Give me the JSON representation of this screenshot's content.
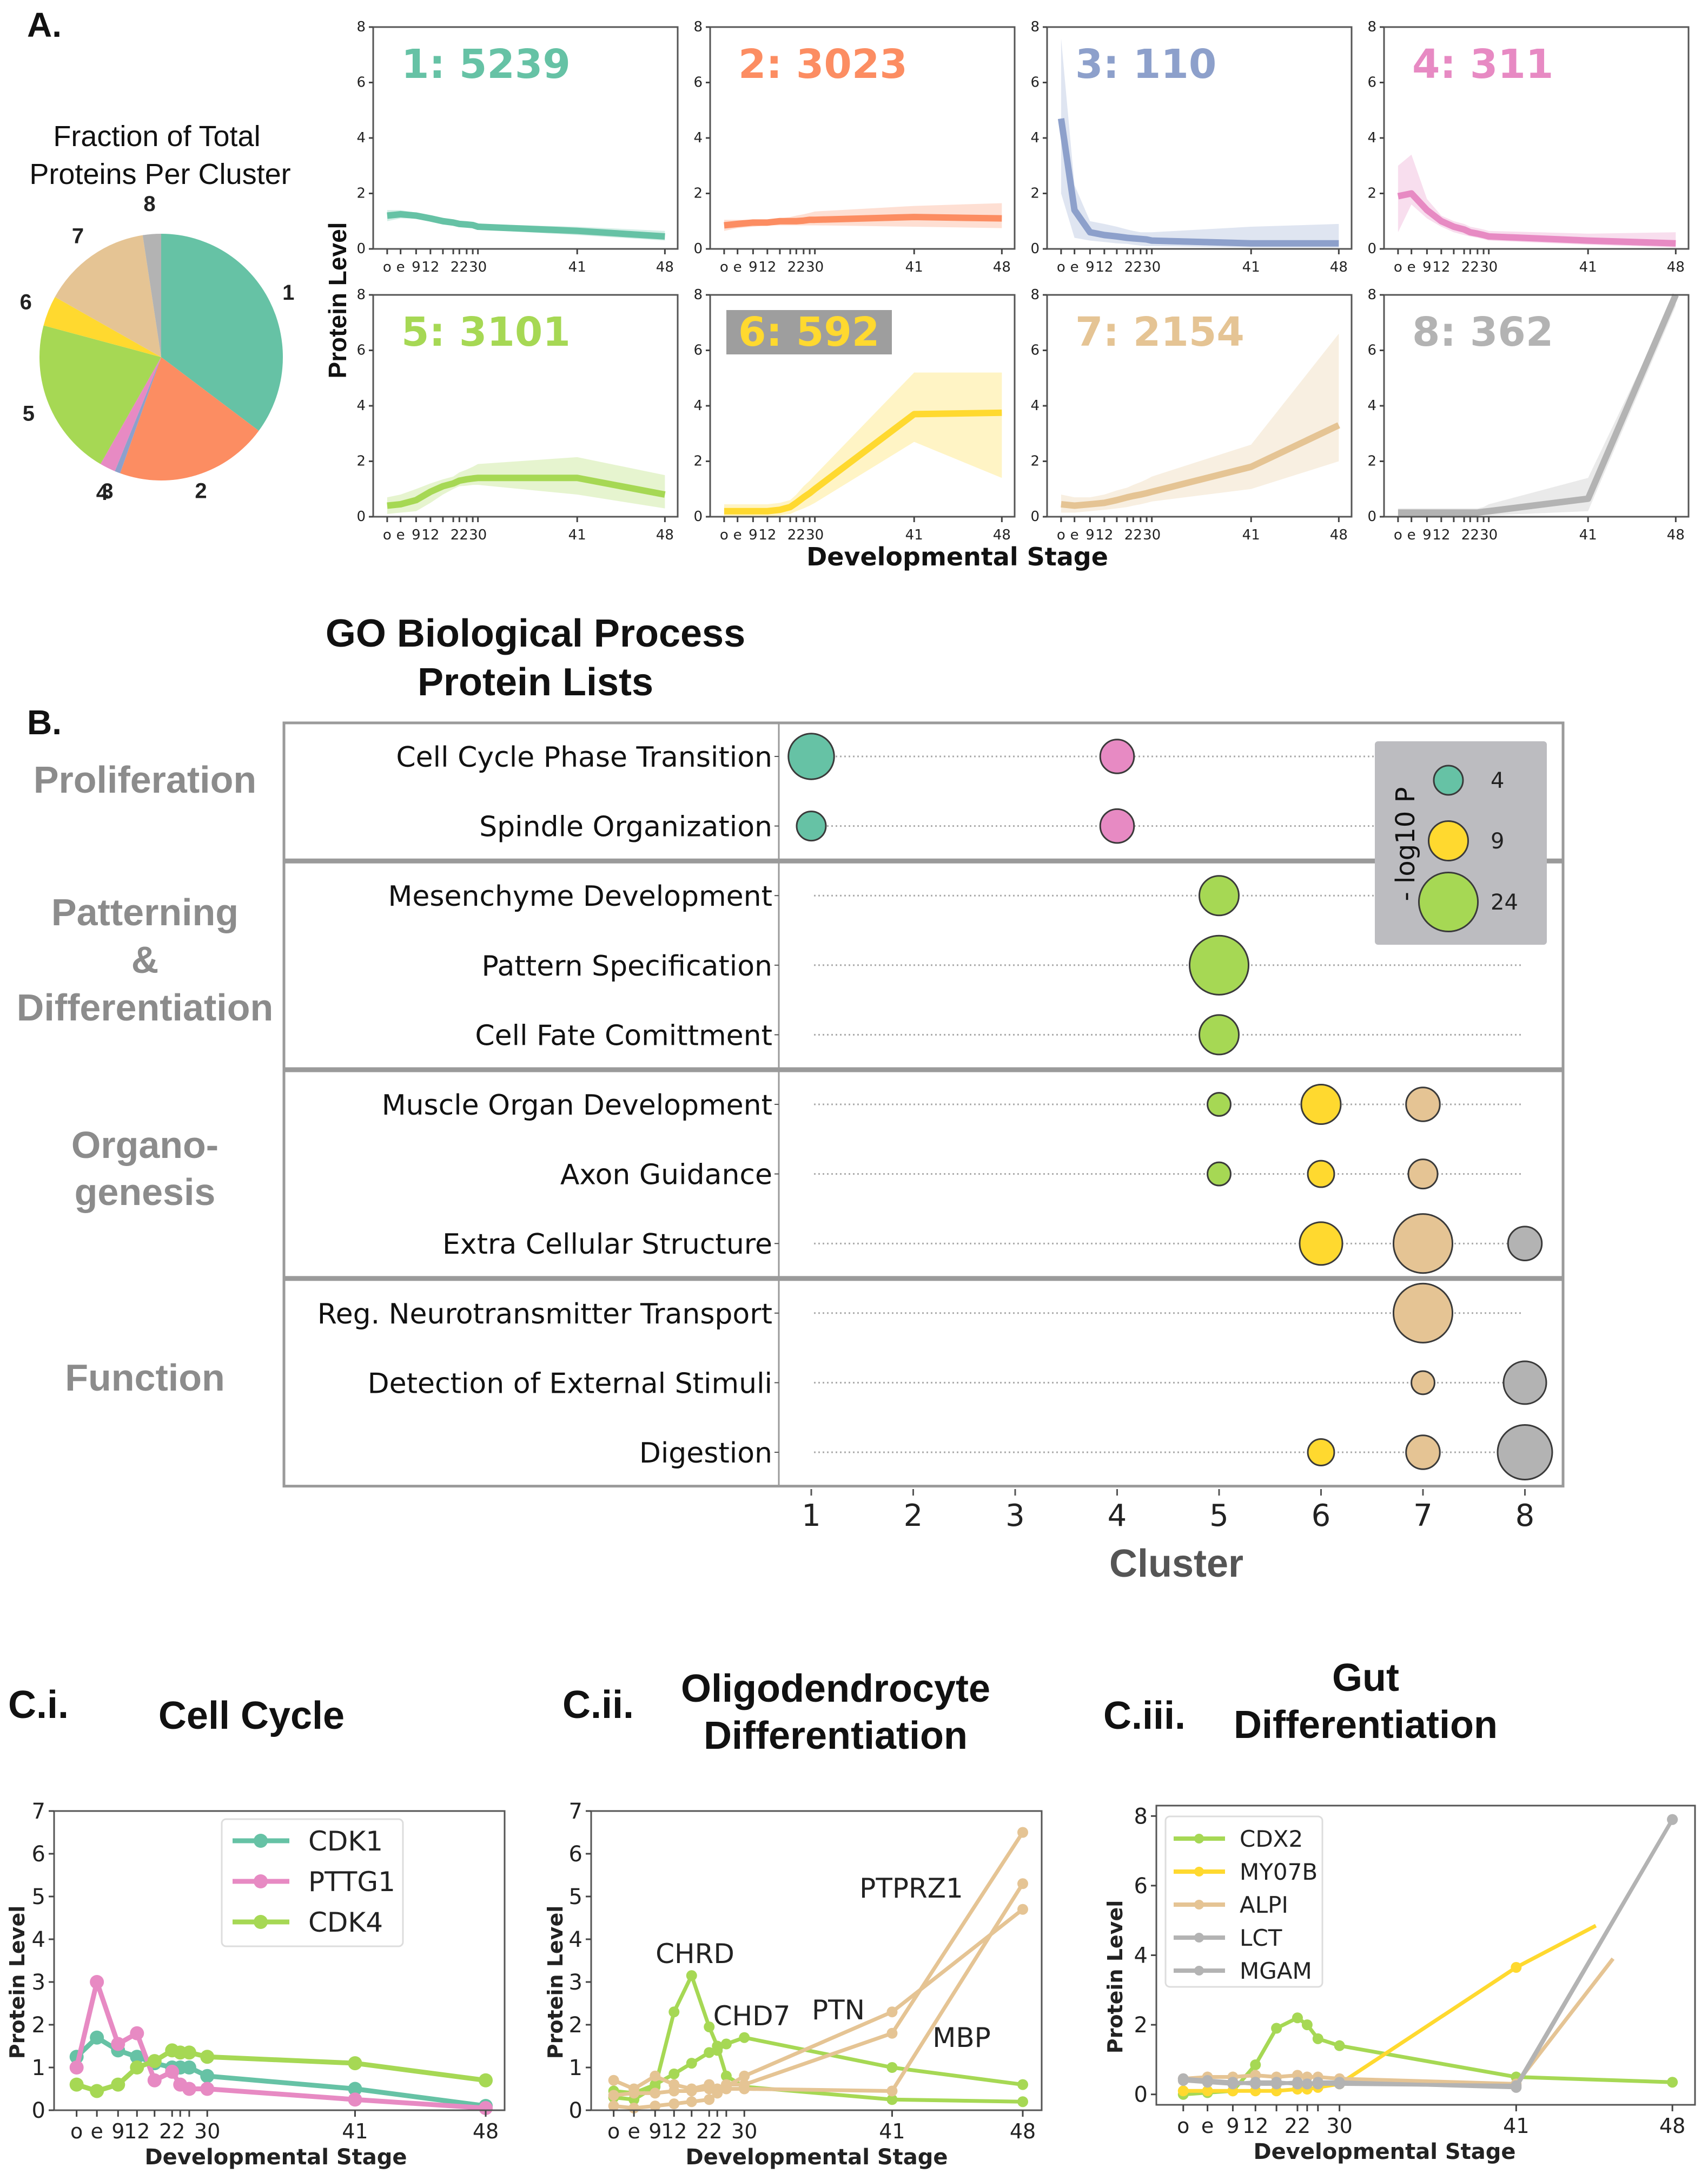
{
  "panel_labels": {
    "a": "A.",
    "b": "B.",
    "ci": "C.i.",
    "cii": "C.ii.",
    "ciii": "C.iii."
  },
  "colors": {
    "c1": "#66c2a5",
    "c2": "#fc8d62",
    "c3": "#8da0cb",
    "c4": "#e78ac3",
    "c5": "#a6d854",
    "c6": "#ffd92f",
    "c7": "#e5c494",
    "c8": "#b3b3b3",
    "label_highlight_bg": "#9e9e9e",
    "legend_bg": "#bcbcc0",
    "category_gray": "#8c8c8c"
  },
  "stage_axis": {
    "labels": [
      "o",
      "e",
      "9",
      "12",
      "",
      "",
      "22",
      "",
      "",
      "30",
      "41",
      "48"
    ],
    "shown_labels_text": "o e 912 22 30"
  },
  "chart_data": [
    {
      "id": "pie",
      "type": "pie",
      "title": "Fraction of Total Proteins Per Cluster",
      "categories": [
        "1",
        "2",
        "3",
        "4",
        "5",
        "6",
        "7",
        "8"
      ],
      "values": [
        5239,
        3023,
        110,
        311,
        3101,
        592,
        2154,
        362
      ],
      "start": "top, counter-clockwise order 8,7,6,5,4,3,2,1 going left; cluster 1 clockwise from top"
    },
    {
      "id": "cluster-profiles",
      "type": "line",
      "xlabel": "Developmental Stage",
      "ylabel": "Protein Level",
      "ylim": [
        0,
        8
      ],
      "yticks": [
        0,
        2,
        4,
        6,
        8
      ],
      "x_stages": [
        "o",
        "e",
        "9",
        "12",
        "15",
        "18",
        "22",
        "24",
        "26",
        "30",
        "41",
        "48"
      ],
      "x_ticklabels": [
        "o",
        "e",
        "9",
        "12",
        "",
        "",
        "22",
        "",
        "",
        "30",
        "41",
        "48"
      ],
      "panels": [
        {
          "cluster": 1,
          "label": "1: 5239",
          "mean": [
            1.2,
            1.25,
            1.2,
            1.1,
            1.0,
            0.95,
            0.9,
            0.88,
            0.86,
            0.8,
            0.65,
            0.45
          ],
          "lower": [
            1.0,
            1.1,
            1.1,
            1.0,
            0.9,
            0.85,
            0.8,
            0.78,
            0.75,
            0.7,
            0.5,
            0.3
          ],
          "upper": [
            1.4,
            1.4,
            1.3,
            1.2,
            1.1,
            1.05,
            1.0,
            0.98,
            0.96,
            0.9,
            0.8,
            0.65
          ]
        },
        {
          "cluster": 2,
          "label": "2: 3023",
          "mean": [
            0.85,
            0.9,
            0.95,
            0.95,
            1.0,
            1.0,
            1.0,
            1.02,
            1.05,
            1.05,
            1.15,
            1.1
          ],
          "lower": [
            0.65,
            0.75,
            0.8,
            0.85,
            0.85,
            0.85,
            0.85,
            0.85,
            0.85,
            0.85,
            0.8,
            0.75
          ],
          "upper": [
            1.05,
            1.05,
            1.05,
            1.05,
            1.1,
            1.15,
            1.2,
            1.25,
            1.3,
            1.35,
            1.55,
            1.65
          ]
        },
        {
          "cluster": 3,
          "label": "3: 110",
          "mean": [
            4.7,
            1.4,
            0.6,
            0.5,
            0.45,
            0.4,
            0.38,
            0.36,
            0.34,
            0.3,
            0.2,
            0.2
          ],
          "lower": [
            2.0,
            0.4,
            0.3,
            0.25,
            0.2,
            0.18,
            0.15,
            0.12,
            0.1,
            0.1,
            0.05,
            0.05
          ],
          "upper": [
            7.6,
            2.3,
            1.0,
            0.9,
            0.8,
            0.7,
            0.65,
            0.6,
            0.6,
            0.6,
            0.8,
            0.9
          ]
        },
        {
          "cluster": 4,
          "label": "4: 311",
          "mean": [
            1.9,
            2.0,
            1.4,
            1.0,
            0.8,
            0.7,
            0.6,
            0.55,
            0.5,
            0.45,
            0.3,
            0.2
          ],
          "lower": [
            0.6,
            1.6,
            1.1,
            0.8,
            0.6,
            0.5,
            0.45,
            0.4,
            0.35,
            0.3,
            0.15,
            0.05
          ],
          "upper": [
            3.0,
            3.4,
            1.8,
            1.2,
            1.0,
            0.9,
            0.8,
            0.75,
            0.7,
            0.65,
            0.55,
            0.6
          ]
        },
        {
          "cluster": 5,
          "label": "5: 3101",
          "mean": [
            0.4,
            0.45,
            0.6,
            0.9,
            1.1,
            1.2,
            1.3,
            1.35,
            1.38,
            1.4,
            1.4,
            0.8
          ],
          "lower": [
            0.1,
            0.15,
            0.2,
            0.5,
            0.8,
            1.0,
            1.1,
            1.12,
            1.15,
            1.15,
            0.8,
            0.3
          ],
          "upper": [
            0.7,
            0.8,
            1.0,
            1.2,
            1.35,
            1.45,
            1.6,
            1.7,
            1.8,
            1.9,
            2.15,
            1.5
          ]
        },
        {
          "cluster": 6,
          "label": "6: 592",
          "mean": [
            0.2,
            0.2,
            0.2,
            0.2,
            0.25,
            0.35,
            0.5,
            0.7,
            0.85,
            1.0,
            3.7,
            3.75
          ],
          "lower": [
            0.0,
            0.0,
            0.0,
            0.0,
            0.05,
            0.1,
            0.2,
            0.3,
            0.4,
            0.5,
            2.7,
            1.4
          ],
          "upper": [
            0.45,
            0.45,
            0.45,
            0.45,
            0.5,
            0.6,
            0.8,
            1.1,
            1.3,
            1.5,
            5.2,
            5.2
          ]
        },
        {
          "cluster": 7,
          "label": "7: 2154",
          "mean": [
            0.45,
            0.4,
            0.45,
            0.5,
            0.6,
            0.7,
            0.75,
            0.8,
            0.85,
            0.9,
            1.8,
            3.3
          ],
          "lower": [
            0.15,
            0.15,
            0.2,
            0.25,
            0.3,
            0.35,
            0.4,
            0.45,
            0.5,
            0.55,
            1.0,
            2.0
          ],
          "upper": [
            0.8,
            0.7,
            0.7,
            0.8,
            0.95,
            1.05,
            1.15,
            1.25,
            1.35,
            1.45,
            2.6,
            6.6
          ]
        },
        {
          "cluster": 8,
          "label": "8: 362",
          "mean": [
            0.15,
            0.15,
            0.15,
            0.15,
            0.15,
            0.15,
            0.15,
            0.15,
            0.18,
            0.2,
            0.65,
            8.0
          ],
          "lower": [
            0.0,
            0.0,
            0.0,
            0.0,
            0.0,
            0.0,
            0.0,
            0.0,
            0.05,
            0.05,
            0.2,
            7.6
          ],
          "upper": [
            0.3,
            0.3,
            0.3,
            0.3,
            0.3,
            0.3,
            0.3,
            0.3,
            0.35,
            0.45,
            1.4,
            8.2
          ]
        }
      ]
    },
    {
      "id": "go-enrichment",
      "type": "scatter",
      "title": "GO Biological Process Protein Lists",
      "xlabel": "Cluster",
      "xticks": [
        1,
        2,
        3,
        4,
        5,
        6,
        7,
        8
      ],
      "size_legend": {
        "title": "- log10 P",
        "entries": [
          {
            "value": 4,
            "cluster": 1
          },
          {
            "value": 9,
            "cluster": 6
          },
          {
            "value": 24,
            "cluster": 5
          }
        ]
      },
      "groups": [
        {
          "name": "Proliferation",
          "terms": [
            {
              "term": "Cell Cycle Phase Transition",
              "points": [
                {
                  "cluster": 1,
                  "logp": 13
                },
                {
                  "cluster": 4,
                  "logp": 6
                }
              ]
            },
            {
              "term": "Spindle Organization",
              "points": [
                {
                  "cluster": 1,
                  "logp": 4
                },
                {
                  "cluster": 4,
                  "logp": 6
                }
              ]
            }
          ]
        },
        {
          "name": "Patterning & Differentiation",
          "lines": [
            "Patterning",
            "&",
            "Differentiation"
          ],
          "terms": [
            {
              "term": "Mesenchyme Development",
              "points": [
                {
                  "cluster": 5,
                  "logp": 9
                }
              ]
            },
            {
              "term": "Pattern Specification",
              "points": [
                {
                  "cluster": 5,
                  "logp": 24
                }
              ]
            },
            {
              "term": "Cell Fate Comittment",
              "points": [
                {
                  "cluster": 5,
                  "logp": 9
                }
              ]
            }
          ]
        },
        {
          "name": "Organo- genesis",
          "lines": [
            "Organo-",
            "genesis"
          ],
          "terms": [
            {
              "term": "Muscle Organ Development",
              "points": [
                {
                  "cluster": 5,
                  "logp": 2
                },
                {
                  "cluster": 6,
                  "logp": 9
                },
                {
                  "cluster": 7,
                  "logp": 6
                }
              ]
            },
            {
              "term": "Axon Guidance",
              "points": [
                {
                  "cluster": 5,
                  "logp": 2
                },
                {
                  "cluster": 6,
                  "logp": 3
                },
                {
                  "cluster": 7,
                  "logp": 4
                }
              ]
            },
            {
              "term": "Extra Cellular Structure",
              "points": [
                {
                  "cluster": 6,
                  "logp": 11
                },
                {
                  "cluster": 7,
                  "logp": 24
                },
                {
                  "cluster": 8,
                  "logp": 6
                }
              ]
            }
          ]
        },
        {
          "name": "Function",
          "lines": [
            "Function"
          ],
          "terms": [
            {
              "term": "Reg. Neurotransmitter Transport",
              "points": [
                {
                  "cluster": 7,
                  "logp": 24
                }
              ]
            },
            {
              "term": "Detection of External Stimuli",
              "points": [
                {
                  "cluster": 7,
                  "logp": 2
                },
                {
                  "cluster": 8,
                  "logp": 11
                }
              ]
            },
            {
              "term": "Digestion",
              "points": [
                {
                  "cluster": 6,
                  "logp": 3
                },
                {
                  "cluster": 7,
                  "logp": 6
                },
                {
                  "cluster": 8,
                  "logp": 20
                }
              ]
            }
          ]
        }
      ]
    },
    {
      "id": "cell-cycle",
      "type": "line",
      "title": "Cell Cycle",
      "xlabel": "Developmental Stage",
      "ylabel": "Protein Level",
      "ylim": [
        0,
        7
      ],
      "yticks": [
        0,
        1,
        2,
        3,
        4,
        5,
        6,
        7
      ],
      "x_stages": [
        "o",
        "e",
        "9",
        "12",
        "17",
        "22",
        "24",
        "26",
        "30",
        "41",
        "48"
      ],
      "x_ticklabels": [
        "o",
        "e",
        "9",
        "12",
        "",
        "22",
        "",
        "",
        "30",
        "41",
        "48"
      ],
      "legend": "top-center",
      "series": [
        {
          "name": "CDK1",
          "color_key": "c1",
          "values": [
            1.25,
            1.7,
            1.4,
            1.25,
            1.1,
            1.0,
            1.0,
            1.0,
            0.8,
            0.5,
            0.1
          ]
        },
        {
          "name": "PTTG1",
          "color_key": "c4",
          "values": [
            1.0,
            3.0,
            1.55,
            1.8,
            0.7,
            0.9,
            0.6,
            0.5,
            0.5,
            0.25,
            0.05
          ]
        },
        {
          "name": "CDK4",
          "color_key": "c5",
          "values": [
            0.6,
            0.45,
            0.6,
            1.0,
            1.15,
            1.4,
            1.35,
            1.35,
            1.25,
            1.1,
            0.7
          ]
        }
      ]
    },
    {
      "id": "oligodendrocyte",
      "type": "line",
      "title": "Oligodendrocyte Differentiation",
      "xlabel": "Developmental Stage",
      "ylabel": "Protein Level",
      "ylim": [
        0,
        7
      ],
      "yticks": [
        0,
        1,
        2,
        3,
        4,
        5,
        6,
        7
      ],
      "x_stages": [
        "o",
        "e",
        "9",
        "12",
        "17",
        "22",
        "24",
        "26",
        "30",
        "41",
        "48"
      ],
      "x_ticklabels": [
        "o",
        "e",
        "9",
        "12",
        "",
        "22",
        "",
        "",
        "30",
        "41",
        "48"
      ],
      "annotations": [
        "CHRD",
        "CHD7",
        "PTN",
        "PTPRZ1",
        "MBP"
      ],
      "series": [
        {
          "name": "CHRD",
          "color_key": "c5",
          "values": [
            0.3,
            0.25,
            0.55,
            2.3,
            3.15,
            1.95,
            1.5,
            0.8,
            0.55,
            0.25,
            0.2
          ]
        },
        {
          "name": "CHD7",
          "color_key": "c5",
          "values": [
            0.45,
            0.4,
            0.6,
            0.85,
            1.1,
            1.35,
            1.4,
            1.55,
            1.7,
            1.0,
            0.6
          ]
        },
        {
          "name": "PTN",
          "color_key": "c7",
          "values": [
            0.7,
            0.5,
            0.8,
            0.6,
            0.5,
            0.6,
            0.45,
            0.55,
            0.8,
            2.3,
            4.7
          ]
        },
        {
          "name": "PTPRZ1",
          "color_key": "c7",
          "values": [
            0.35,
            0.4,
            0.4,
            0.45,
            0.45,
            0.5,
            0.5,
            0.6,
            0.6,
            1.8,
            6.5
          ]
        },
        {
          "name": "MBP",
          "color_key": "c7",
          "values": [
            0.1,
            0.05,
            0.1,
            0.15,
            0.2,
            0.25,
            0.4,
            0.5,
            0.5,
            0.45,
            5.3
          ]
        }
      ]
    },
    {
      "id": "gut",
      "type": "line",
      "title": "Gut Differentiation",
      "xlabel": "Developmental Stage",
      "ylabel": "Protein Level",
      "ylim": [
        -0.3,
        8.3
      ],
      "yticks": [
        0,
        2,
        4,
        6,
        8
      ],
      "x_stages": [
        "o",
        "e",
        "9",
        "12",
        "17",
        "22",
        "24",
        "26",
        "30",
        "41",
        "48"
      ],
      "x_ticklabels": [
        "o",
        "e",
        "9",
        "12",
        "",
        "22",
        "",
        "",
        "30",
        "41",
        "48"
      ],
      "legend": "top-left",
      "series": [
        {
          "name": "CDX2",
          "color_key": "c5",
          "values": [
            0.0,
            0.05,
            0.1,
            0.85,
            1.9,
            2.2,
            2.0,
            1.6,
            1.4,
            0.5,
            0.35
          ]
        },
        {
          "name": "MY07B",
          "color_key": "c6",
          "values": [
            0.1,
            0.1,
            0.1,
            0.1,
            0.1,
            0.15,
            0.15,
            0.2,
            0.3,
            3.65,
            4.85
          ],
          "last_x": "between 41 and 48"
        },
        {
          "name": "ALPI",
          "color_key": "c7",
          "values": [
            0.45,
            0.5,
            0.5,
            0.55,
            0.5,
            0.55,
            0.5,
            0.5,
            0.45,
            0.3,
            3.9
          ],
          "last_x": "between 41 and 48"
        },
        {
          "name": "LCT",
          "color_key": "c8",
          "values": [
            0.4,
            0.35,
            0.3,
            0.35,
            0.35,
            0.3,
            0.3,
            0.35,
            0.35,
            0.2,
            7.9
          ]
        },
        {
          "name": "MGAM",
          "color_key": "c8",
          "values": [
            0.45,
            0.4,
            0.35,
            0.3,
            0.3,
            0.35,
            0.3,
            0.3,
            0.3,
            0.25,
            7.9
          ]
        }
      ]
    }
  ]
}
